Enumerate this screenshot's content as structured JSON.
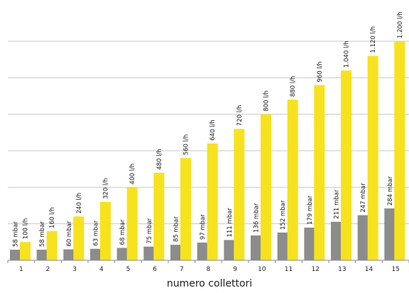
{
  "chart_data": {
    "type": "bar",
    "xlabel": "numero collettori",
    "categories": [
      "1",
      "2",
      "3",
      "4",
      "5",
      "6",
      "7",
      "8",
      "9",
      "10",
      "11",
      "12",
      "13",
      "14",
      "15"
    ],
    "series": [
      {
        "values": [
          58,
          58,
          60,
          63,
          68,
          75,
          85,
          97,
          111,
          136,
          152,
          179,
          211,
          247,
          284
        ],
        "labels": [
          "58 mbar",
          "58 mbar",
          "60 mbar",
          "63 mbar",
          "68 mbar",
          "75 mbar",
          "85 mbar",
          "97 mbar",
          "111 mbar",
          "136 mbar",
          "152 mbar",
          "179 mbar",
          "211 mbar",
          "247 mbar",
          "284 mbar"
        ],
        "color": "#8c8c8c"
      },
      {
        "values": [
          100,
          160,
          240,
          320,
          400,
          480,
          560,
          640,
          720,
          800,
          880,
          960,
          1040,
          1120,
          1200
        ],
        "labels": [
          "100 l/h",
          "160 l/h",
          "240 l/h",
          "320 l/h",
          "400 l/h",
          "480 l/h",
          "560 l/h",
          "640 l/h",
          "720 l/h",
          "800 l/h",
          "880 l/h",
          "960 l/h",
          "1.040 l/h",
          "1.120 l/h",
          "1.200 l/h"
        ],
        "color": "#f7e21e"
      }
    ],
    "ylim": [
      0,
      1200
    ],
    "grid": true,
    "legend": "none"
  }
}
